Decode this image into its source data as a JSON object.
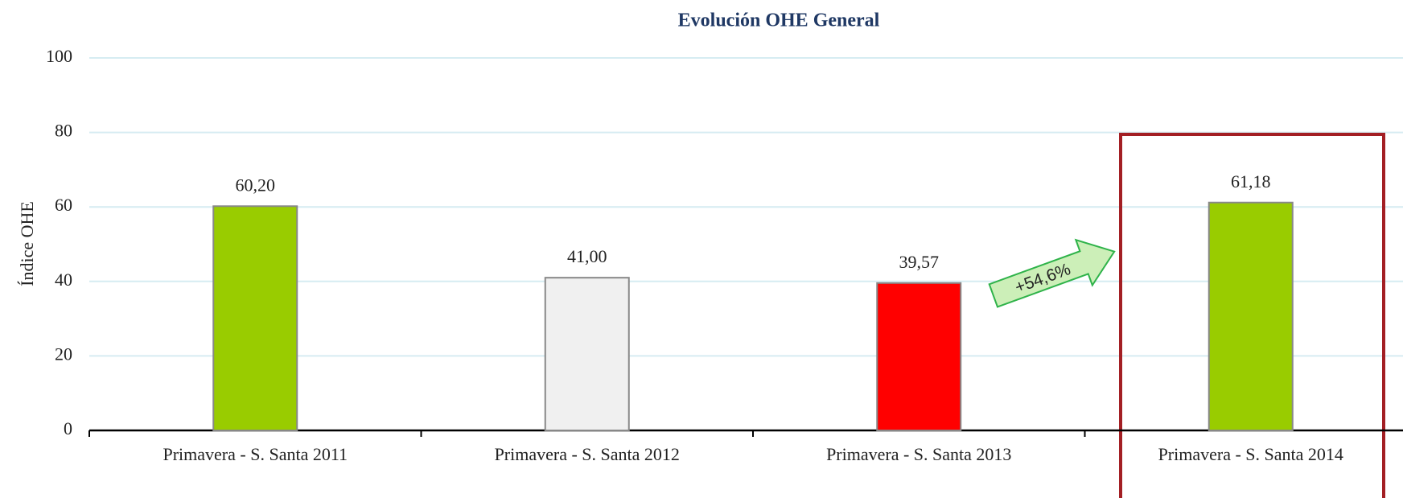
{
  "chart_data": {
    "type": "bar",
    "title": "Evolución OHE General",
    "y_label": "Índice OHE",
    "categories": [
      "Primavera - S. Santa 2011",
      "Primavera - S. Santa 2012",
      "Primavera - S. Santa 2013",
      "Primavera - S. Santa 2014"
    ],
    "values": [
      60.2,
      41.0,
      39.57,
      61.18
    ],
    "value_labels": [
      "60,20",
      "41,00",
      "39,57",
      "61,18"
    ],
    "colors": [
      "#99cc00",
      "#f0f0f0",
      "#ff0000",
      "#99cc00"
    ],
    "ylim": [
      0,
      100
    ],
    "yticks": [
      0,
      20,
      40,
      60,
      80,
      100
    ],
    "grid": true,
    "annotations": [
      "+54,6%"
    ]
  }
}
